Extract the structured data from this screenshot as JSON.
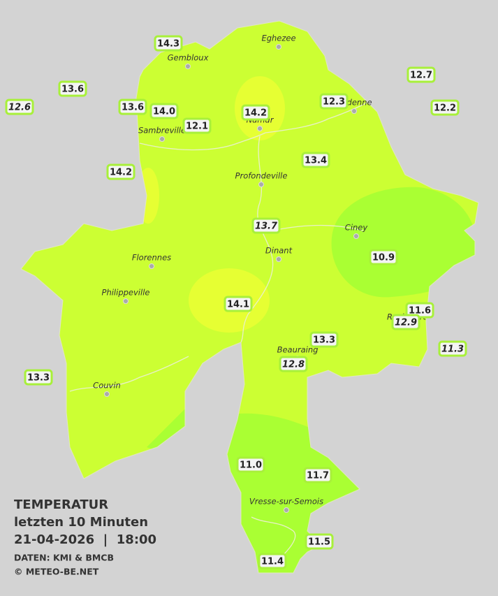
{
  "title": {
    "heading": "TEMPERATUR",
    "subheading": "letzten 10 Minuten",
    "timestamp": "21-04-2026  |  18:00",
    "source": "DATEN: KMI & BMCB",
    "copyright": "© METEO-BE.NET"
  },
  "towns": [
    "Eghezee",
    "Gembloux",
    "Andenne",
    "Namur",
    "Sambreville",
    "Profondeville",
    "Ciney",
    "Dinant",
    "Florennes",
    "Philippeville",
    "Rochefort",
    "Beauraing",
    "Couvin",
    "Vresse-sur-Semois"
  ],
  "stations": [
    {
      "text": "14.3",
      "italic": false
    },
    {
      "text": "13.6",
      "italic": false
    },
    {
      "text": "12.6",
      "italic": true
    },
    {
      "text": "13.6",
      "italic": false
    },
    {
      "text": "14.0",
      "italic": false
    },
    {
      "text": "12.1",
      "italic": false
    },
    {
      "text": "14.2",
      "italic": false
    },
    {
      "text": "12.3",
      "italic": false
    },
    {
      "text": "12.7",
      "italic": false
    },
    {
      "text": "12.2",
      "italic": false
    },
    {
      "text": "14.2",
      "italic": false
    },
    {
      "text": "13.4",
      "italic": false
    },
    {
      "text": "13.7",
      "italic": true
    },
    {
      "text": "10.9",
      "italic": false
    },
    {
      "text": "14.1",
      "italic": false
    },
    {
      "text": "11.6",
      "italic": false
    },
    {
      "text": "12.9",
      "italic": true
    },
    {
      "text": "11.3",
      "italic": true
    },
    {
      "text": "13.3",
      "italic": false
    },
    {
      "text": "12.8",
      "italic": true
    },
    {
      "text": "13.3",
      "italic": false
    },
    {
      "text": "11.0",
      "italic": false
    },
    {
      "text": "11.7",
      "italic": false
    },
    {
      "text": "11.5",
      "italic": false
    },
    {
      "text": "11.4",
      "italic": false
    }
  ]
}
